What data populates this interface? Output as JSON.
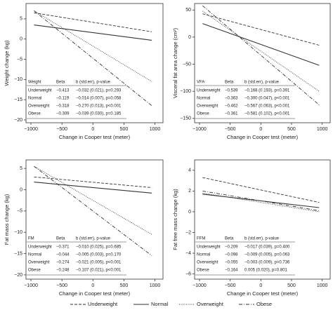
{
  "chart_data": [
    {
      "type": "line",
      "y_label": "Weight change (kg)",
      "x_label": "Change in Cooper test (meter)",
      "x": [
        -950,
        950
      ],
      "xlim": [
        -1080,
        1130
      ],
      "xticks": [
        {
          "value": -1000,
          "label": "−1000"
        },
        {
          "value": -500,
          "label": "−500"
        },
        0,
        500,
        1000
      ],
      "ylim": [
        -20.7,
        8.8
      ],
      "yticks": [
        {
          "value": -20,
          "label": "−20"
        },
        {
          "value": -15,
          "label": "−15"
        },
        {
          "value": -10,
          "label": "−10"
        },
        {
          "value": -5,
          "label": "−5"
        },
        0,
        5
      ],
      "series": [
        {
          "name": "Underweight",
          "color": "#333333",
          "style": "dashed",
          "values": [
            6.5,
            1.8
          ]
        },
        {
          "name": "Normal",
          "color": "#333333",
          "style": "solid",
          "values": [
            3.5,
            -0.3
          ]
        },
        {
          "name": "Overweight",
          "color": "#333333",
          "style": "dotted",
          "values": [
            7,
            -10.5
          ]
        },
        {
          "name": "Obese",
          "color": "#333333",
          "style": "dashdot",
          "values": [
            7,
            -16.5
          ]
        }
      ],
      "table": {
        "header": [
          "Weight",
          "Beta",
          "b (std.err), p-value"
        ],
        "rows": [
          [
            "Underweight",
            "−0.413",
            "−0.032 (0.021), p=0.293"
          ],
          [
            "Normal",
            "−0.119",
            "−0.014 (0.007), p=0.058"
          ],
          [
            "Overweight",
            "−0.318",
            "−0.270 (0.013), p<0.001"
          ],
          [
            "Obese",
            "−0.309",
            "−0.039 (0.030), p=0.185"
          ]
        ]
      }
    },
    {
      "type": "line",
      "y_label": "Visceral fat area change (cm²)",
      "x_label": "Change in Cooper test (meter)",
      "x": [
        -950,
        950
      ],
      "xlim": [
        -1080,
        1130
      ],
      "xticks": [
        {
          "value": -1000,
          "label": "−1000"
        },
        {
          "value": -500,
          "label": "−500"
        },
        0,
        500,
        1000
      ],
      "ylim": [
        -158,
        62
      ],
      "yticks": [
        {
          "value": -150,
          "label": "−150"
        },
        {
          "value": -100,
          "label": "−100"
        },
        {
          "value": -50,
          "label": "−50"
        },
        0,
        50
      ],
      "series": [
        {
          "name": "Underweight",
          "color": "#333333",
          "style": "dashed",
          "values": [
            43,
            -15
          ]
        },
        {
          "name": "Normal",
          "color": "#333333",
          "style": "solid",
          "values": [
            25,
            -52
          ]
        },
        {
          "name": "Overweight",
          "color": "#333333",
          "style": "dotted",
          "values": [
            48,
            -100
          ]
        },
        {
          "name": "Obese",
          "color": "#333333",
          "style": "dashdot",
          "values": [
            58,
            -125
          ]
        }
      ],
      "table": {
        "header": [
          "VFA",
          "Beta",
          "b (std.err), p-value"
        ],
        "rows": [
          [
            "Underweight",
            "−0.539",
            "−0.168 (0.193), p=0.391"
          ],
          [
            "Normal",
            "−0.363",
            "−0.300 (0.047), p<0.001"
          ],
          [
            "Overweight",
            "−0.462",
            "−0.567 (0.063), p<0.001"
          ],
          [
            "Obese",
            "−0.361",
            "−0.581 (0.102), p<0.001"
          ]
        ]
      }
    },
    {
      "type": "line",
      "y_label": "Fat mass change (kg)",
      "x_label": "Change in Cooper test (meter)",
      "x": [
        -950,
        950
      ],
      "xlim": [
        -1080,
        1130
      ],
      "xticks": [
        {
          "value": -1000,
          "label": "−1000"
        },
        {
          "value": -500,
          "label": "−500"
        },
        0,
        500,
        1000
      ],
      "ylim": [
        -21,
        7
      ],
      "yticks": [
        {
          "value": -20,
          "label": "−20"
        },
        {
          "value": -15,
          "label": "−15"
        },
        {
          "value": -10,
          "label": "−10"
        },
        {
          "value": -5,
          "label": "−5"
        },
        0,
        5
      ],
      "series": [
        {
          "name": "Underweight",
          "color": "#333333",
          "style": "dashed",
          "values": [
            3,
            0.5
          ]
        },
        {
          "name": "Normal",
          "color": "#333333",
          "style": "solid",
          "values": [
            1.8,
            -0.8
          ]
        },
        {
          "name": "Overweight",
          "color": "#333333",
          "style": "dotted",
          "values": [
            5.5,
            -10.5
          ]
        },
        {
          "name": "Obese",
          "color": "#333333",
          "style": "dashdot",
          "values": [
            5.5,
            -15.5
          ]
        }
      ],
      "table": {
        "header": [
          "FM",
          "Beta",
          "b (std.err), p-value"
        ],
        "rows": [
          [
            "Underweight",
            "−0.371",
            "−0.010 (0.025), p=0.685"
          ],
          [
            "Normal",
            "−0.044",
            "−0.005 (0.003), p=0.170"
          ],
          [
            "Overweight",
            "−0.274",
            "−0.021 (0.005), p<0.001"
          ],
          [
            "Obese",
            "−0.248",
            "−0.107 (0.021), p<0.001"
          ]
        ]
      }
    },
    {
      "type": "line",
      "y_label": "Fat free mass change (kg)",
      "x_label": "Change in Cooper test (meter)",
      "x": [
        -950,
        950
      ],
      "xlim": [
        -1080,
        1130
      ],
      "xticks": [
        {
          "value": -1000,
          "label": "−1000"
        },
        {
          "value": -500,
          "label": "−500"
        },
        0,
        500,
        1000
      ],
      "ylim": [
        -6.5,
        5
      ],
      "yticks": [
        {
          "value": -6,
          "label": "−6"
        },
        {
          "value": -4,
          "label": "−4"
        },
        {
          "value": -2,
          "label": "−2"
        },
        0,
        2,
        4
      ],
      "series": [
        {
          "name": "Underweight",
          "color": "#333333",
          "style": "dashed",
          "values": [
            3.3,
            0.9
          ]
        },
        {
          "name": "Normal",
          "color": "#333333",
          "style": "solid",
          "values": [
            1.7,
            0.4
          ]
        },
        {
          "name": "Overweight",
          "color": "#333333",
          "style": "dotted",
          "values": [
            1.8,
            0
          ]
        },
        {
          "name": "Obese",
          "color": "#333333",
          "style": "dashdot",
          "values": [
            2,
            0.1
          ]
        }
      ],
      "table": {
        "header": [
          "FFM",
          "Beta",
          "b (std.err), p-value"
        ],
        "rows": [
          [
            "Underweight",
            "−0.209",
            "−0.017 (0.039), p=0.400"
          ],
          [
            "Normal",
            "−0.098",
            "−0.009 (0.005), p=0.063"
          ],
          [
            "Overweight",
            "−0.055",
            "−0.003 (0.009), p=0.736"
          ],
          [
            "Obese",
            "−0.164",
            "0.005 (0.020), p=0.801"
          ]
        ]
      }
    }
  ]
}
